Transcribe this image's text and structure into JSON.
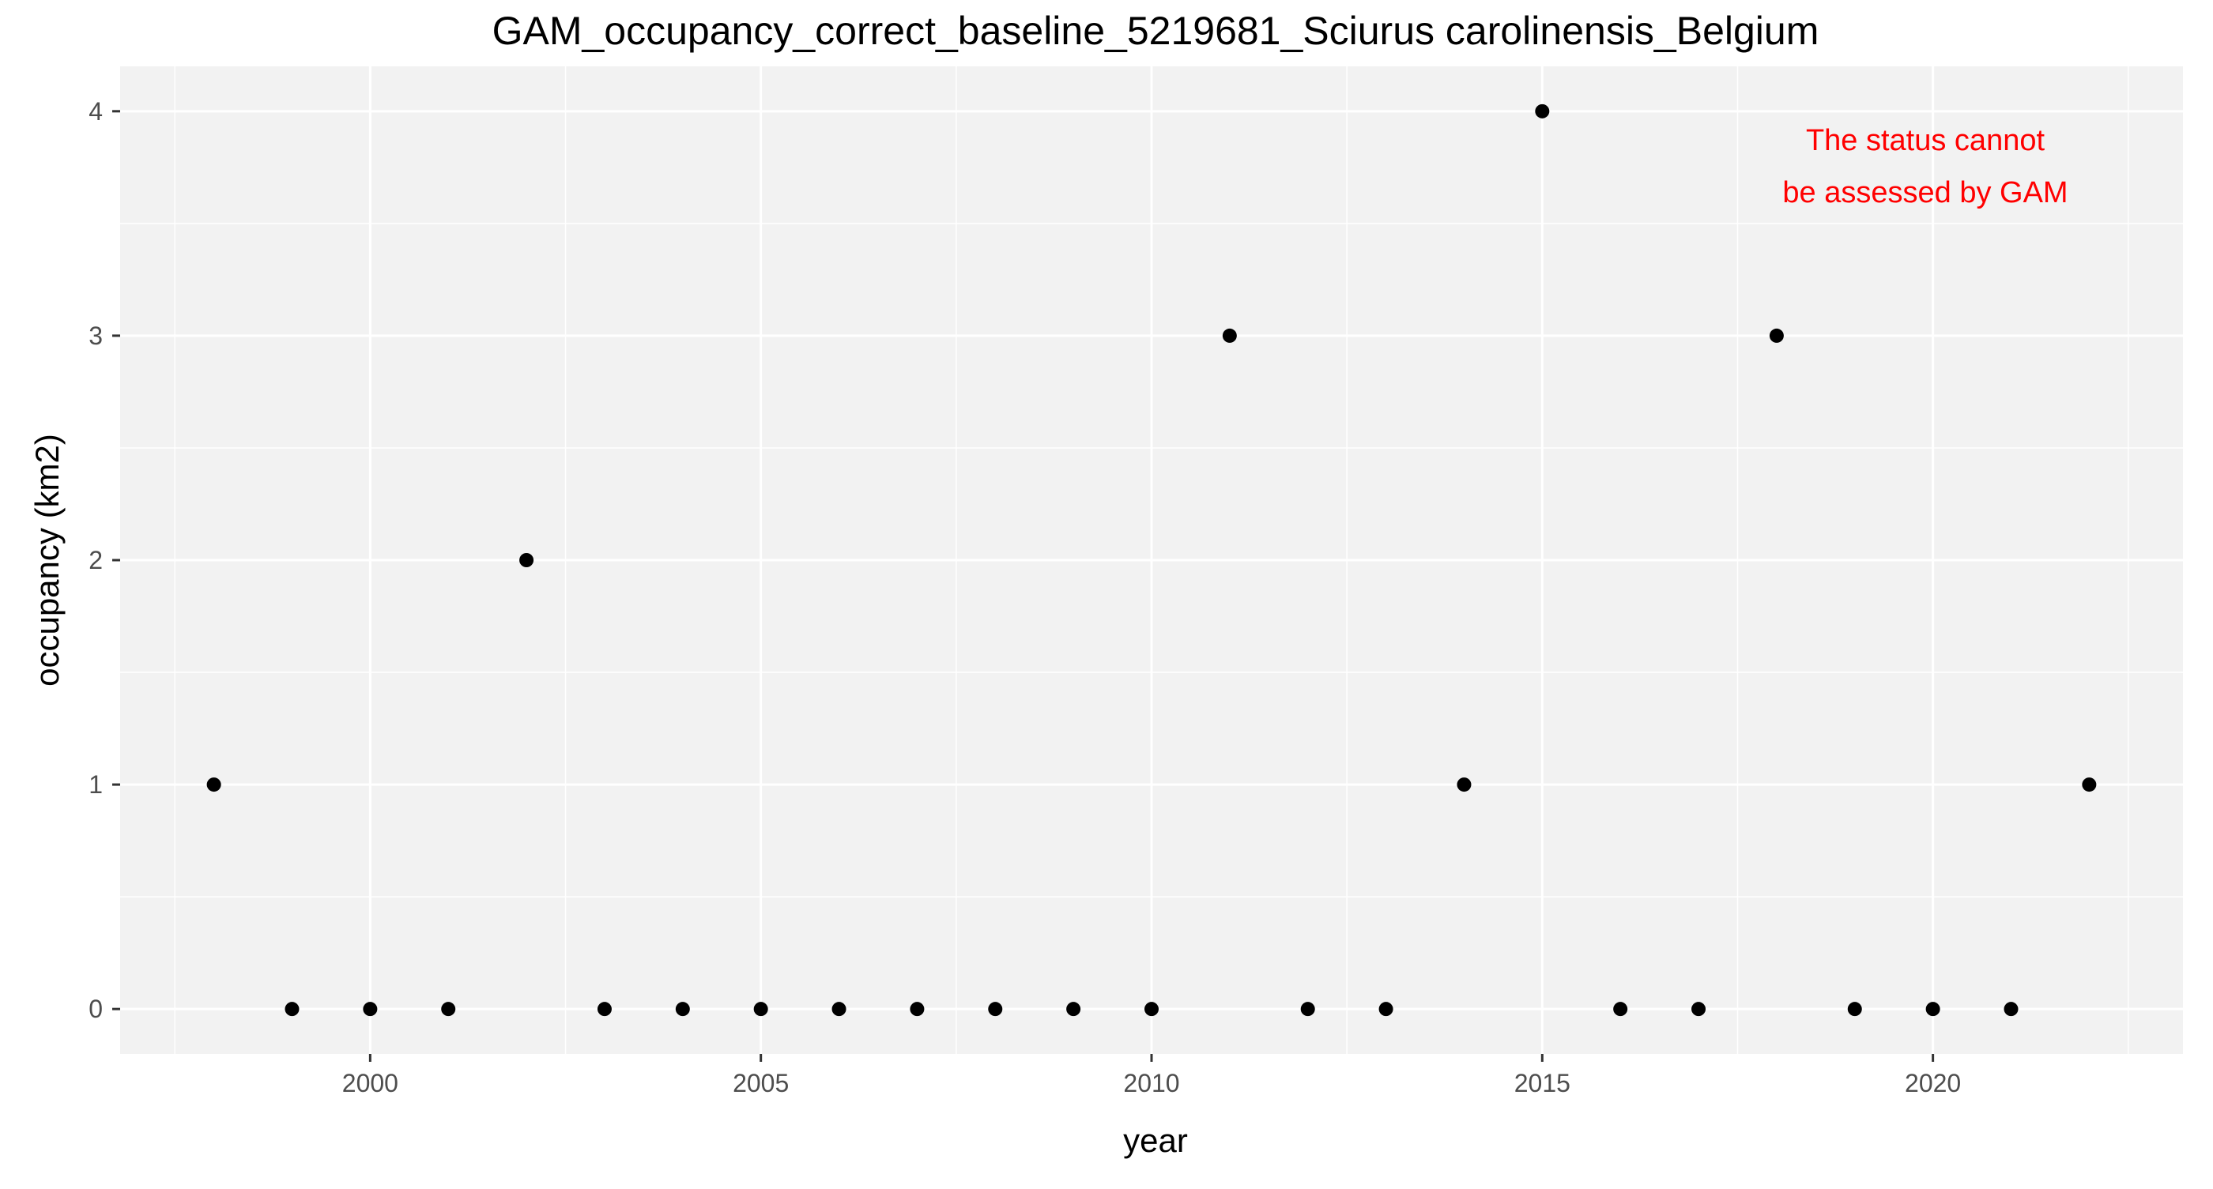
{
  "chart_data": {
    "type": "scatter",
    "title": "GAM_occupancy_correct_baseline_5219681_Sciurus carolinensis_Belgium",
    "xlabel": "year",
    "ylabel": "occupancy (km2)",
    "x": [
      1998,
      1999,
      2000,
      2001,
      2002,
      2003,
      2004,
      2005,
      2006,
      2007,
      2008,
      2009,
      2010,
      2011,
      2012,
      2013,
      2014,
      2015,
      2016,
      2017,
      2018,
      2019,
      2020,
      2021,
      2022
    ],
    "y": [
      1,
      0,
      0,
      0,
      2,
      0,
      0,
      0,
      0,
      0,
      0,
      0,
      0,
      3,
      0,
      0,
      1,
      4,
      0,
      0,
      3,
      0,
      0,
      0,
      1
    ],
    "xlim": [
      1996.8,
      2023.2
    ],
    "ylim": [
      -0.2,
      4.2
    ],
    "x_ticks": [
      2000,
      2005,
      2010,
      2015,
      2020
    ],
    "x_tick_labels": [
      "2000",
      "2005",
      "2010",
      "2015",
      "2020"
    ],
    "x_minor_ticks": [
      1997.5,
      2002.5,
      2007.5,
      2012.5,
      2017.5,
      2022.5
    ],
    "y_ticks": [
      0,
      1,
      2,
      3,
      4
    ],
    "y_tick_labels": [
      "0",
      "1",
      "2",
      "3",
      "4"
    ],
    "y_minor_ticks": [
      0.5,
      1.5,
      2.5,
      3.5
    ],
    "grid": true,
    "annotation": {
      "lines": [
        "The status cannot",
        "be assessed by GAM"
      ],
      "color": "#ff0000",
      "position": "top-right"
    },
    "colors": {
      "panel_background": "#f2f2f2",
      "grid": "#ffffff",
      "points": "#000000",
      "text": "#000000",
      "tick_text": "#4d4d4d"
    }
  }
}
